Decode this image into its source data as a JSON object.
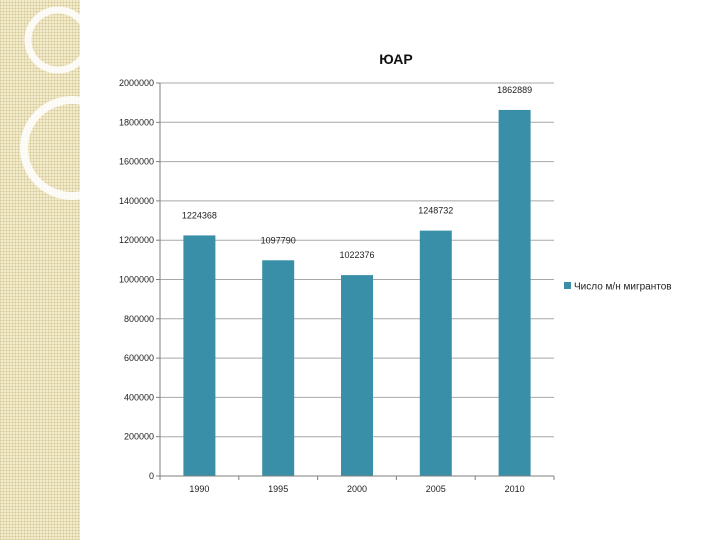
{
  "colors": {
    "bar": "#3a8fa8",
    "grid": "#a8a8a8",
    "axis": "#7f7f7f"
  },
  "chart_data": {
    "type": "bar",
    "title": "ЮАР",
    "categories": [
      "1990",
      "1995",
      "2000",
      "2005",
      "2010"
    ],
    "series": [
      {
        "name": "Число м/н мигрантов",
        "values": [
          1224368,
          1097790,
          1022376,
          1248732,
          1862889
        ]
      }
    ],
    "data_labels": [
      "1224368",
      "1097790",
      "1022376",
      "1248732",
      "1862889"
    ],
    "ylim": [
      0,
      2000000
    ],
    "yticks": [
      0,
      200000,
      400000,
      600000,
      800000,
      1000000,
      1200000,
      1400000,
      1600000,
      1800000,
      2000000
    ],
    "ytick_labels": [
      "0",
      "200000",
      "400000",
      "600000",
      "800000",
      "1000000",
      "1200000",
      "1400000",
      "1600000",
      "1800000",
      "2000000"
    ],
    "grid": true,
    "legend_position": "right"
  }
}
